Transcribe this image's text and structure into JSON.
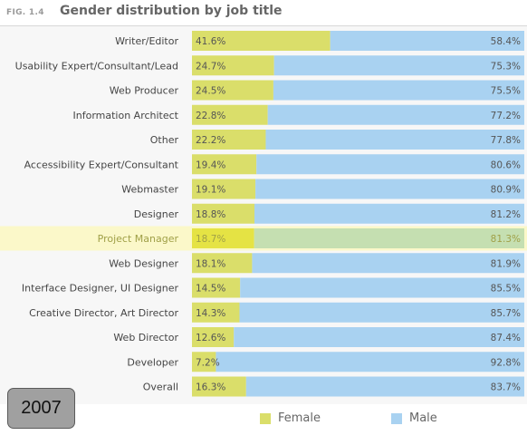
{
  "header": {
    "fig_label": "FIG. 1.4",
    "title": "Gender distribution by job title"
  },
  "year_badge": "2007",
  "colors": {
    "female": "#dade6a",
    "male": "#a9d2f1",
    "highlight_band": "#fbf8c9",
    "highlight_female": "#e5e344",
    "highlight_male": "#c5dfb1",
    "highlight_label": "#a0a048",
    "label": "#444444"
  },
  "legend": {
    "female": "Female",
    "male": "Male"
  },
  "chart_data": {
    "type": "bar",
    "orientation": "horizontal",
    "stacked": true,
    "percent_stacked": true,
    "xlim": [
      0,
      100
    ],
    "highlight_category": "Project Manager",
    "legend_position": "bottom",
    "grid": false,
    "categories": [
      "Writer/Editor",
      "Usability Expert/Consultant/Lead",
      "Web Producer",
      "Information Architect",
      "Other",
      "Accessibility Expert/Consultant",
      "Webmaster",
      "Designer",
      "Project Manager",
      "Web Designer",
      "Interface Designer, UI Designer",
      "Creative Director, Art Director",
      "Web Director",
      "Developer",
      "Overall"
    ],
    "series": [
      {
        "name": "Female",
        "values": [
          41.6,
          24.7,
          24.5,
          22.8,
          22.2,
          19.4,
          19.1,
          18.8,
          18.7,
          18.1,
          14.5,
          14.3,
          12.6,
          7.2,
          16.3
        ],
        "labels": [
          "41.6%",
          "24.7%",
          "24.5%",
          "22.8%",
          "22.2%",
          "19.4%",
          "19.1%",
          "18.8%",
          "18.7%",
          "18.1%",
          "14.5%",
          "14.3%",
          "12.6%",
          "7.2%",
          "16.3%"
        ]
      },
      {
        "name": "Male",
        "values": [
          58.4,
          75.3,
          75.5,
          77.2,
          77.8,
          80.6,
          80.9,
          81.2,
          81.3,
          81.9,
          85.5,
          85.7,
          87.4,
          92.8,
          83.7
        ],
        "labels": [
          "58.4%",
          "75.3%",
          "75.5%",
          "77.2%",
          "77.8%",
          "80.6%",
          "80.9%",
          "81.2%",
          "81.3%",
          "81.9%",
          "85.5%",
          "85.7%",
          "87.4%",
          "92.8%",
          "83.7%"
        ]
      }
    ]
  }
}
